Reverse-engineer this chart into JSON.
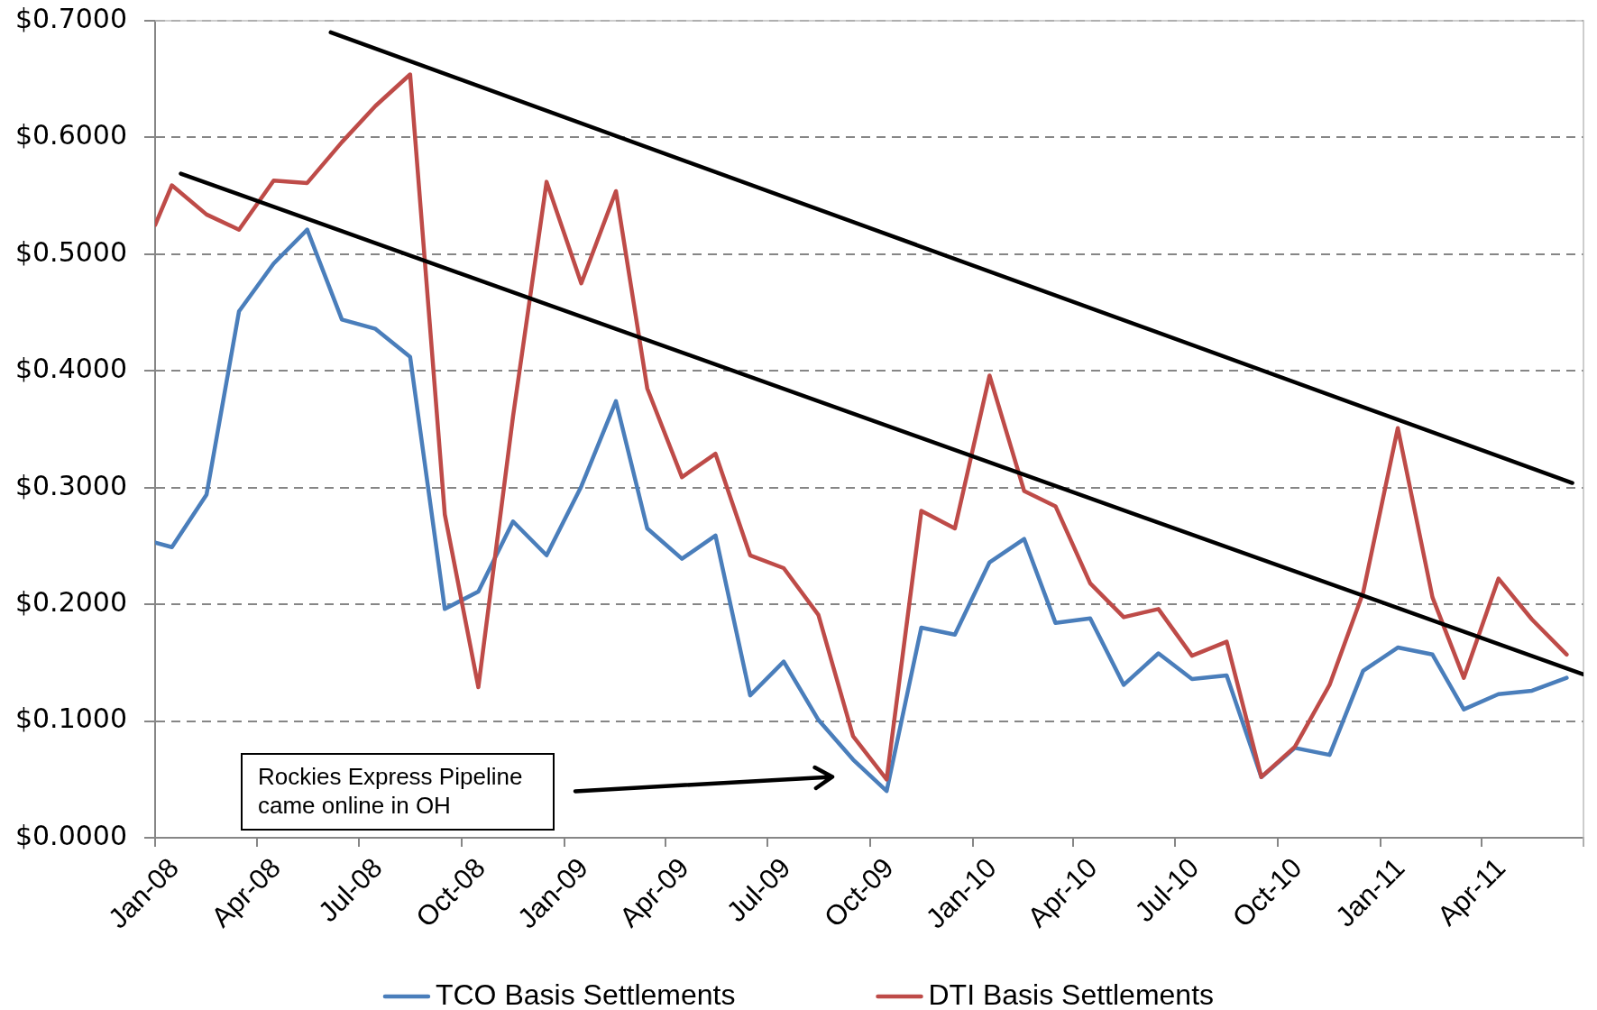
{
  "chart_data": {
    "type": "line",
    "x": [
      "2008-01-01",
      "2008-01-16",
      "2008-02-16",
      "2008-03-16",
      "2008-04-16",
      "2008-05-16",
      "2008-06-16",
      "2008-07-16",
      "2008-08-16",
      "2008-09-16",
      "2008-10-16",
      "2008-11-16",
      "2008-12-16",
      "2009-01-16",
      "2009-02-16",
      "2009-03-16",
      "2009-04-16",
      "2009-05-16",
      "2009-06-16",
      "2009-07-16",
      "2009-08-16",
      "2009-09-16",
      "2009-10-16",
      "2009-11-16",
      "2009-12-16",
      "2010-01-16",
      "2010-02-16",
      "2010-03-16",
      "2010-04-16",
      "2010-05-16",
      "2010-06-16",
      "2010-07-16",
      "2010-08-16",
      "2010-09-16",
      "2010-10-16",
      "2010-11-16",
      "2010-12-16",
      "2011-01-16",
      "2011-02-16",
      "2011-03-16",
      "2011-04-16",
      "2011-05-16",
      "2011-06-16"
    ],
    "series": [
      {
        "name": "TCO Basis Settlements",
        "color": "#4a7ebb",
        "values": [
          0.253,
          0.249,
          0.294,
          0.451,
          0.492,
          0.521,
          0.444,
          0.436,
          0.412,
          0.196,
          0.211,
          0.271,
          0.242,
          0.301,
          0.374,
          0.265,
          0.239,
          0.259,
          0.122,
          0.151,
          0.101,
          0.067,
          0.04,
          0.18,
          0.174,
          0.236,
          0.256,
          0.184,
          0.188,
          0.131,
          0.158,
          0.136,
          0.139,
          0.052,
          0.077,
          0.071,
          0.143,
          0.163,
          0.157,
          0.11,
          0.123,
          0.126,
          0.137
        ]
      },
      {
        "name": "DTI Basis Settlements",
        "color": "#be4b48",
        "values": [
          0.525,
          0.559,
          0.534,
          0.521,
          0.563,
          0.561,
          0.596,
          0.627,
          0.654,
          0.277,
          0.129,
          0.361,
          0.562,
          0.475,
          0.554,
          0.385,
          0.309,
          0.329,
          0.242,
          0.231,
          0.191,
          0.087,
          0.05,
          0.28,
          0.265,
          0.396,
          0.297,
          0.284,
          0.218,
          0.189,
          0.196,
          0.156,
          0.168,
          0.052,
          0.078,
          0.131,
          0.21,
          0.351,
          0.206,
          0.137,
          0.222,
          0.187,
          0.157
        ]
      },
      {
        "type": "line",
        "color": "#000000",
        "x": [
          "2008-06-06",
          "2011-06-21"
        ],
        "values": [
          0.69,
          0.304
        ]
      },
      {
        "type": "line",
        "color": "#000000",
        "x": [
          "2008-01-24",
          "2011-07-01"
        ],
        "values": [
          0.569,
          0.14
        ]
      }
    ],
    "xlim": [
      "2008-01-01",
      "2011-07-01"
    ],
    "xticks": [
      {
        "value": "2008-01-01",
        "label": "Jan-08"
      },
      {
        "value": "2008-04-01",
        "label": "Apr-08"
      },
      {
        "value": "2008-07-01",
        "label": "Jul-08"
      },
      {
        "value": "2008-10-01",
        "label": "Oct-08"
      },
      {
        "value": "2009-01-01",
        "label": "Jan-09"
      },
      {
        "value": "2009-04-01",
        "label": "Apr-09"
      },
      {
        "value": "2009-07-01",
        "label": "Jul-09"
      },
      {
        "value": "2009-10-01",
        "label": "Oct-09"
      },
      {
        "value": "2010-01-01",
        "label": "Jan-10"
      },
      {
        "value": "2010-04-01",
        "label": "Apr-10"
      },
      {
        "value": "2010-07-01",
        "label": "Jul-10"
      },
      {
        "value": "2010-10-01",
        "label": "Oct-10"
      },
      {
        "value": "2011-01-01",
        "label": "Jan-11"
      },
      {
        "value": "2011-04-01",
        "label": "Apr-11"
      },
      {
        "value": "2011-07-01",
        "label": null
      }
    ],
    "ylim": [
      0,
      0.7
    ],
    "yticks": [
      {
        "value": 0,
        "label": "$0.0000"
      },
      {
        "value": 0.1,
        "label": "$0.1000"
      },
      {
        "value": 0.2,
        "label": "$0.2000"
      },
      {
        "value": 0.3,
        "label": "$0.3000"
      },
      {
        "value": 0.4,
        "label": "$0.4000"
      },
      {
        "value": 0.5,
        "label": "$0.5000"
      },
      {
        "value": 0.6,
        "label": "$0.6000"
      },
      {
        "value": 0.7,
        "label": "$0.7000"
      }
    ],
    "grid": "y",
    "legend": "bottom",
    "annotations": [
      "Rockies Express Pipeline came online in OH"
    ]
  }
}
